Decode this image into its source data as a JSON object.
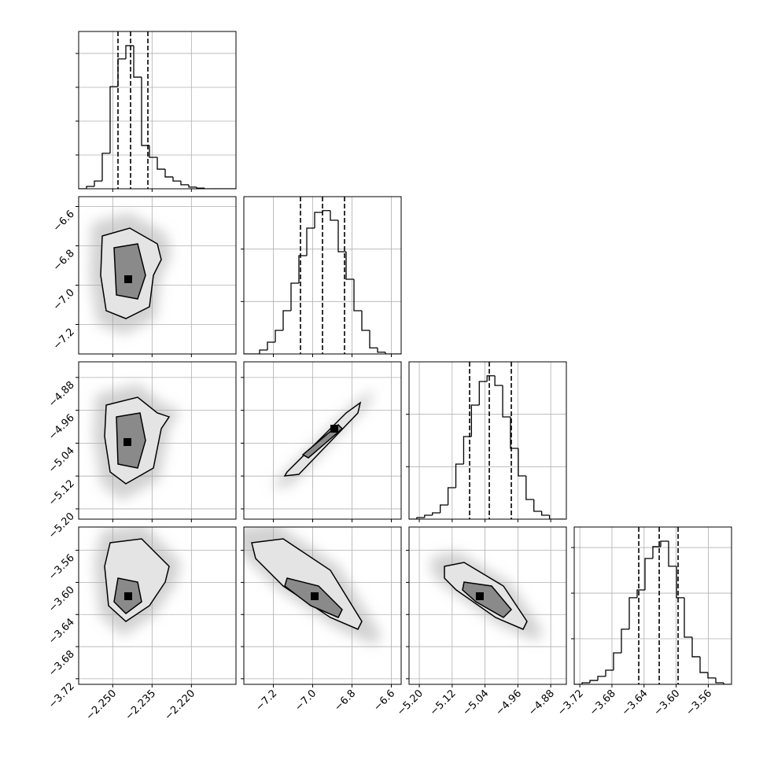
{
  "chart_data": {
    "type": "corner",
    "grid": true,
    "parameters": [
      {
        "lim": [
          -2.263,
          -2.203
        ],
        "ticks": [
          {
            "value": -2.25,
            "label": "−2.250"
          },
          {
            "value": -2.235,
            "label": "−2.235"
          },
          {
            "value": -2.22,
            "label": "−2.220"
          }
        ],
        "hist": {
          "bins": [
            -2.263,
            -2.26,
            -2.257,
            -2.254,
            -2.251,
            -2.248,
            -2.245,
            -2.242,
            -2.239,
            -2.236,
            -2.233,
            -2.23,
            -2.227,
            -2.224,
            -2.221,
            -2.218,
            -2.215,
            -2.212,
            -2.209,
            -2.206,
            -2.203
          ],
          "counts": [
            0,
            35,
            115,
            525,
            1510,
            1920,
            2115,
            1650,
            640,
            465,
            290,
            175,
            115,
            60,
            25,
            10,
            0,
            0,
            0,
            0
          ],
          "ylim": [
            0,
            2325
          ],
          "yticks": [
            500,
            1000,
            1500,
            2000
          ],
          "quantiles": [
            -2.248,
            -2.2432,
            -2.2366
          ]
        }
      },
      {
        "lim": [
          -7.35,
          -6.55
        ],
        "ticks": [
          {
            "value": -7.2,
            "label": "−7.2"
          },
          {
            "value": -7.0,
            "label": "−7.0"
          },
          {
            "value": -6.8,
            "label": "−6.8"
          },
          {
            "value": -6.6,
            "label": "−6.6"
          }
        ],
        "hist": {
          "bins": [
            -7.35,
            -7.31,
            -7.27,
            -7.23,
            -7.19,
            -7.15,
            -7.11,
            -7.07,
            -7.03,
            -6.99,
            -6.95,
            -6.91,
            -6.87,
            -6.83,
            -6.79,
            -6.75,
            -6.71,
            -6.67,
            -6.63,
            -6.59,
            -6.55
          ],
          "counts": [
            0,
            0,
            45,
            135,
            270,
            495,
            810,
            1125,
            1440,
            1620,
            1640,
            1530,
            1170,
            855,
            495,
            270,
            70,
            20,
            0,
            0
          ],
          "ylim": [
            0,
            1800
          ],
          "yticks": [
            600,
            1200
          ],
          "quantiles": [
            -7.062,
            -6.95,
            -6.838
          ]
        }
      },
      {
        "lim": [
          -5.225,
          -4.842
        ],
        "ticks": [
          {
            "value": -5.2,
            "label": "−5.20"
          },
          {
            "value": -5.12,
            "label": "−5.12"
          },
          {
            "value": -5.04,
            "label": "−5.04"
          },
          {
            "value": -4.96,
            "label": "−4.96"
          },
          {
            "value": -4.88,
            "label": "−4.88"
          }
        ],
        "hist": {
          "bins": [
            -5.225,
            -5.206,
            -5.187,
            -5.168,
            -5.149,
            -5.13,
            -5.111,
            -5.092,
            -5.073,
            -5.054,
            -5.035,
            -5.016,
            -4.997,
            -4.978,
            -4.959,
            -4.94,
            -4.921,
            -4.902,
            -4.883,
            -4.864,
            -4.845
          ],
          "counts": [
            0,
            18,
            45,
            72,
            162,
            360,
            630,
            945,
            1305,
            1575,
            1640,
            1530,
            1170,
            810,
            495,
            225,
            90,
            45,
            0,
            0
          ],
          "ylim": [
            0,
            1800
          ],
          "yticks": [
            600,
            1200
          ],
          "quantiles": [
            -5.0775,
            -5.0296,
            -4.976
          ]
        }
      },
      {
        "lim": [
          -3.727,
          -3.531
        ],
        "ticks": [
          {
            "value": -3.72,
            "label": "−3.72"
          },
          {
            "value": -3.68,
            "label": "−3.68"
          },
          {
            "value": -3.64,
            "label": "−3.64"
          },
          {
            "value": -3.6,
            "label": "−3.60"
          },
          {
            "value": -3.56,
            "label": "−3.56"
          }
        ],
        "hist": {
          "bins": [
            -3.727,
            -3.7172,
            -3.7074,
            -3.6976,
            -3.6878,
            -3.678,
            -3.6682,
            -3.6584,
            -3.6486,
            -3.6388,
            -3.629,
            -3.6192,
            -3.6094,
            -3.5996,
            -3.5898,
            -3.58,
            -3.5702,
            -3.5604,
            -3.5506,
            -3.5408,
            -3.531
          ],
          "counts": [
            0,
            35,
            85,
            175,
            310,
            690,
            1210,
            1900,
            2070,
            2760,
            3020,
            3140,
            2590,
            1900,
            1035,
            605,
            260,
            140,
            35,
            0
          ],
          "ylim": [
            0,
            3450
          ],
          "yticks": [
            1000,
            2000,
            3000
          ],
          "quantiles": [
            -3.6466,
            -3.6211,
            -3.5976
          ]
        }
      }
    ],
    "panels": [
      {
        "contours": [
          {
            "x": [
              -2.254,
              -2.2435,
              -2.233,
              -2.2315,
              -2.2345,
              -2.236,
              -2.245,
              -2.2525,
              -2.2546
            ],
            "y": [
              -6.75,
              -6.71,
              -6.79,
              -6.87,
              -6.95,
              -7.11,
              -7.17,
              -7.13,
              -6.95
            ]
          },
          {
            "x": [
              -2.2495,
              -2.2405,
              -2.2375,
              -2.2405,
              -2.2486
            ],
            "y": [
              -6.81,
              -6.79,
              -6.95,
              -7.07,
              -7.05
            ]
          }
        ],
        "peak": {
          "x": -2.2441,
          "y": -6.97
        }
      },
      {
        "contours": [
          {
            "x": [
              -2.2525,
              -2.2405,
              -2.233,
              -2.2285,
              -2.2315,
              -2.2345,
              -2.245,
              -2.251,
              -2.2531
            ],
            "y": [
              -4.9473,
              -4.9282,
              -4.9665,
              -4.976,
              -5.0048,
              -5.1005,
              -5.1388,
              -5.1101,
              -5.0239
            ]
          },
          {
            "x": [
              -2.2486,
              -2.2396,
              -2.2375,
              -2.2405,
              -2.248
            ],
            "y": [
              -4.976,
              -4.9665,
              -5.0335,
              -5.1005,
              -5.091
            ]
          }
        ],
        "peak": {
          "x": -2.2444,
          "y": -5.0373
        }
      },
      {
        "contours": [
          {
            "x": [
              -7.13,
              -6.83,
              -6.758,
              -6.77,
              -7.07,
              -7.142
            ],
            "y": [
              -5.1101,
              -4.9665,
              -4.9416,
              -4.9665,
              -5.1158,
              -5.1197
            ]
          },
          {
            "x": [
              -7.05,
              -6.87,
              -6.85,
              -7.022
            ],
            "y": [
              -5.068,
              -4.9952,
              -5.0048,
              -5.0757
            ]
          }
        ],
        "peak": {
          "x": -6.89,
          "y": -5.0048
        }
      },
      {
        "contours": [
          {
            "x": [
              -2.251,
              -2.239,
              -2.2285,
              -2.23,
              -2.236,
              -2.245,
              -2.2516,
              -2.2531
            ],
            "y": [
              -3.5506,
              -3.5457,
              -3.58,
              -3.5996,
              -3.629,
              -3.6486,
              -3.629,
              -3.58
            ]
          },
          {
            "x": [
              -2.248,
              -2.2405,
              -2.239,
              -2.245,
              -2.2495
            ],
            "y": [
              -3.5947,
              -3.5996,
              -3.6241,
              -3.6388,
              -3.6241
            ]
          }
        ],
        "peak": {
          "x": -2.2441,
          "y": -3.6172
        }
      },
      {
        "contours": [
          {
            "x": [
              -7.31,
              -7.15,
              -6.91,
              -6.75,
              -6.77,
              -6.91,
              -7.15,
              -7.29
            ],
            "y": [
              -3.5506,
              -3.5457,
              -3.5849,
              -3.6486,
              -3.6584,
              -3.6437,
              -3.6045,
              -3.5702
            ]
          },
          {
            "x": [
              -7.13,
              -6.97,
              -6.85,
              -6.87,
              -7.01,
              -7.142
            ],
            "y": [
              -3.5947,
              -3.6045,
              -3.6339,
              -3.6437,
              -3.629,
              -3.6045
            ]
          }
        ],
        "peak": {
          "x": -6.99,
          "y": -3.6172
        }
      },
      {
        "contours": [
          {
            "x": [
              -5.1388,
              -5.091,
              -4.9952,
              -4.9378,
              -4.9473,
              -5.0143,
              -5.1101,
              -5.1388
            ],
            "y": [
              -3.58,
              -3.5751,
              -3.6045,
              -3.6486,
              -3.6584,
              -3.6437,
              -3.6094,
              -3.5947
            ]
          },
          {
            "x": [
              -5.091,
              -5.024,
              -4.976,
              -4.9952,
              -5.0623,
              -5.0948
            ],
            "y": [
              -3.5996,
              -3.6045,
              -3.6339,
              -3.6437,
              -3.6241,
              -3.6094
            ]
          }
        ],
        "peak": {
          "x": -5.0527,
          "y": -3.6172
        }
      }
    ]
  }
}
